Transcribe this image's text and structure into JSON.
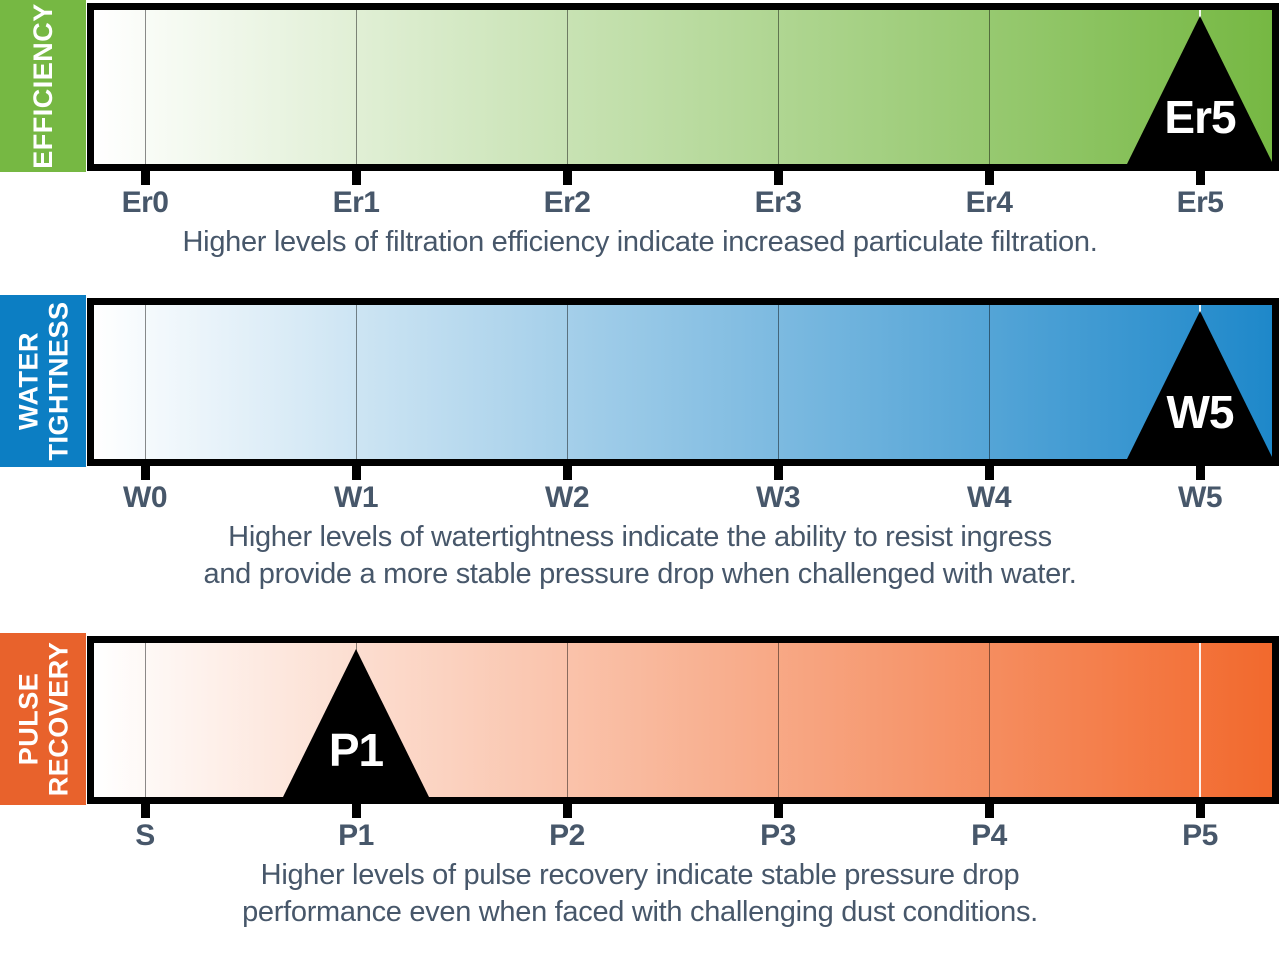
{
  "colors": {
    "efficiency_green": "#76B843",
    "watertightness_blue": "#0C7EC3",
    "pulse_orange": "#E8622C",
    "marker_black": "#000000",
    "marker_text": "#FFFFFF",
    "label_text": "#47576A"
  },
  "chart_data": [
    {
      "type": "rating-scale",
      "title": "EFFICIENCY",
      "title_lines": [
        "EFFICIENCY"
      ],
      "categories": [
        "Er0",
        "Er1",
        "Er2",
        "Er3",
        "Er4",
        "Er5"
      ],
      "selected": "Er5",
      "selected_index": 5,
      "scale_color": "#76B843",
      "gradient": [
        "#FFFFFF",
        "#76B843"
      ],
      "caption_lines": [
        "Higher levels of filtration efficiency indicate increased particulate filtration."
      ]
    },
    {
      "type": "rating-scale",
      "title": "WATER TIGHTNESS",
      "title_lines": [
        "WATER",
        "TIGHTNESS"
      ],
      "categories": [
        "W0",
        "W1",
        "W2",
        "W3",
        "W4",
        "W5"
      ],
      "selected": "W5",
      "selected_index": 5,
      "scale_color": "#0C7EC3",
      "gradient": [
        "#FFFFFF",
        "#1E88CA"
      ],
      "caption_lines": [
        "Higher levels of watertightness indicate the ability to resist ingress",
        "and provide a more stable pressure drop when challenged with water."
      ]
    },
    {
      "type": "rating-scale",
      "title": "PULSE RECOVERY",
      "title_lines": [
        "PULSE",
        "RECOVERY"
      ],
      "categories": [
        "S",
        "P1",
        "P2",
        "P3",
        "P4",
        "P5"
      ],
      "selected": "P1",
      "selected_index": 1,
      "scale_color": "#E8622C",
      "gradient": [
        "#FFFFFF",
        "#F2692D"
      ],
      "caption_lines": [
        "Higher levels of pulse recovery indicate stable pressure drop",
        "performance even when faced with challenging dust conditions."
      ]
    }
  ]
}
